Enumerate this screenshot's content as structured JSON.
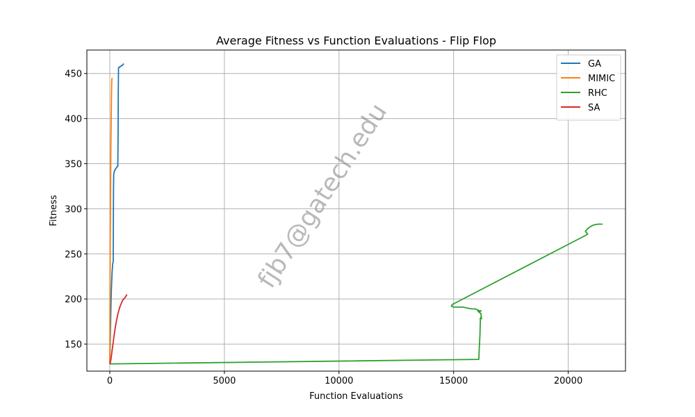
{
  "chart_data": {
    "type": "line",
    "title": "Average Fitness vs Function Evaluations - Flip Flop",
    "xlabel": "Function Evaluations",
    "ylabel": "Fitness",
    "xlim": [
      -1000,
      22500
    ],
    "ylim": [
      120,
      476
    ],
    "xticks": [
      0,
      5000,
      10000,
      15000,
      20000
    ],
    "yticks": [
      150,
      200,
      250,
      300,
      350,
      400,
      450
    ],
    "grid": true,
    "legend_position": "top-right",
    "watermark": "fjb7@gatech.edu",
    "series": [
      {
        "name": "GA",
        "color": "#1f77b4",
        "x": [
          0,
          30,
          60,
          100,
          130,
          150,
          160,
          170,
          200,
          250,
          300,
          330,
          350,
          360,
          370,
          380,
          400,
          430,
          460,
          490,
          520,
          550,
          580,
          610
        ],
        "y": [
          128,
          170,
          205,
          230,
          240,
          241,
          320,
          338,
          342,
          344,
          346,
          347,
          347,
          380,
          430,
          456,
          457,
          457,
          458,
          458,
          459,
          459,
          460,
          461
        ]
      },
      {
        "name": "MIMIC",
        "color": "#ff7f0e",
        "x": [
          0,
          10,
          20,
          30,
          40,
          50,
          60,
          70,
          80,
          90,
          100
        ],
        "y": [
          128,
          200,
          260,
          300,
          340,
          375,
          400,
          420,
          435,
          443,
          445
        ]
      },
      {
        "name": "RHC",
        "color": "#2ca02c",
        "x": [
          0,
          16100,
          16110,
          16130,
          16150,
          16160,
          16170,
          16160,
          16200,
          16220,
          16190,
          16120,
          16050,
          16100,
          16200,
          16150,
          16050,
          15950,
          15800,
          15600,
          15400,
          15200,
          15000,
          14900,
          14950,
          20800,
          20850,
          20750,
          20850,
          20950,
          21100,
          21300,
          21500
        ],
        "y": [
          128,
          133,
          140,
          150,
          160,
          170,
          175,
          178,
          180,
          178,
          184,
          185,
          187,
          187,
          187,
          186,
          188,
          189,
          189,
          190,
          191,
          191,
          191,
          192,
          194,
          271,
          272,
          275,
          278,
          280,
          282,
          283,
          283
        ]
      },
      {
        "name": "SA",
        "color": "#d62728",
        "x": [
          0,
          30,
          60,
          100,
          150,
          200,
          250,
          300,
          350,
          400,
          450,
          500,
          550,
          600,
          650,
          700,
          750
        ],
        "y": [
          128,
          130,
          135,
          143,
          152,
          162,
          170,
          177,
          183,
          188,
          192,
          195,
          198,
          200,
          201,
          203,
          205
        ]
      }
    ]
  }
}
